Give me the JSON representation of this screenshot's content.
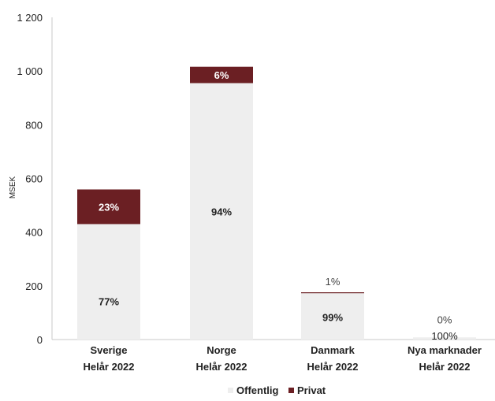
{
  "colors": {
    "offentlig": "#eeeeee",
    "privat": "#6b1f23",
    "axis": "#c8c8c8",
    "text": "#222222"
  },
  "chart_data": {
    "type": "bar",
    "stacked": true,
    "ylabel": "MSEK",
    "ylim": [
      0,
      1200
    ],
    "yticks": [
      0,
      200,
      400,
      600,
      800,
      1000,
      1200
    ],
    "ytick_labels": [
      "0",
      "200",
      "400",
      "600",
      "800",
      "1 000",
      "1 200"
    ],
    "categories": [
      [
        "Sverige",
        "Helår 2022"
      ],
      [
        "Norge",
        "Helår 2022"
      ],
      [
        "Danmark",
        "Helår 2022"
      ],
      [
        "Nya marknader",
        "Helår 2022"
      ]
    ],
    "series": [
      {
        "name": "Offentlig",
        "values": [
          430,
          955,
          174,
          8
        ],
        "labels": [
          "77%",
          "94%",
          "99%",
          "100%"
        ]
      },
      {
        "name": "Privat",
        "values": [
          129,
          61,
          2,
          0
        ],
        "labels": [
          "23%",
          "6%",
          "1%",
          "0%"
        ]
      }
    ],
    "legend": {
      "position": "bottom",
      "entries": [
        "Offentlig",
        "Privat"
      ]
    },
    "grid": false
  }
}
